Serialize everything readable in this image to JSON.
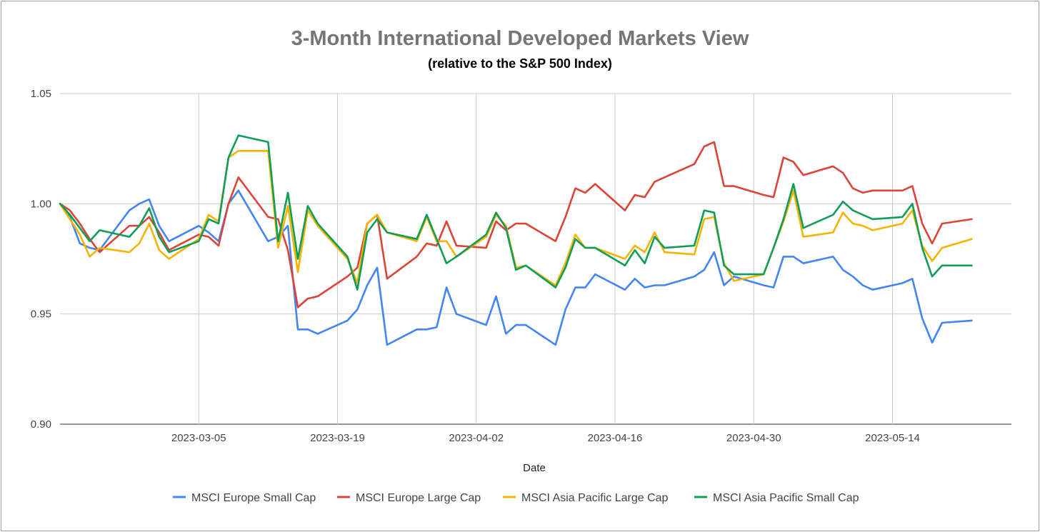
{
  "chart_data": {
    "type": "line",
    "title": "3-Month International Developed Markets View",
    "subtitle": "(relative to the S&P 500 Index)",
    "xlabel": "Date",
    "ylabel": "",
    "ylim": [
      0.9,
      1.05
    ],
    "y_ticks": [
      "0.90",
      "0.95",
      "1.00",
      "1.05"
    ],
    "x_ticks": [
      "2023-03-05",
      "2023-03-19",
      "2023-04-02",
      "2023-04-16",
      "2023-04-30",
      "2023-05-14"
    ],
    "x_tick_index": [
      14,
      28,
      42,
      56,
      70,
      84
    ],
    "x_range": [
      0,
      96
    ],
    "grid": true,
    "legend_position": "bottom",
    "series": [
      {
        "name": "MSCI Europe Small Cap",
        "color": "#4285F4",
        "points": [
          [
            0,
            1.0
          ],
          [
            1,
            0.994
          ],
          [
            2,
            0.982
          ],
          [
            3,
            0.98
          ],
          [
            4,
            0.979
          ],
          [
            7,
            0.997
          ],
          [
            8,
            1.0
          ],
          [
            9,
            1.002
          ],
          [
            10,
            0.99
          ],
          [
            11,
            0.983
          ],
          [
            14,
            0.99
          ],
          [
            15,
            0.987
          ],
          [
            16,
            0.983
          ],
          [
            17,
            1.0
          ],
          [
            18,
            1.006
          ],
          [
            21,
            0.983
          ],
          [
            22,
            0.985
          ],
          [
            23,
            0.99
          ],
          [
            24,
            0.943
          ],
          [
            25,
            0.943
          ],
          [
            26,
            0.941
          ],
          [
            29,
            0.947
          ],
          [
            30,
            0.952
          ],
          [
            31,
            0.963
          ],
          [
            32,
            0.971
          ],
          [
            33,
            0.936
          ],
          [
            36,
            0.943
          ],
          [
            37,
            0.943
          ],
          [
            38,
            0.944
          ],
          [
            39,
            0.962
          ],
          [
            40,
            0.95
          ],
          [
            43,
            0.945
          ],
          [
            44,
            0.958
          ],
          [
            45,
            0.941
          ],
          [
            46,
            0.945
          ],
          [
            47,
            0.945
          ],
          [
            50,
            0.936
          ],
          [
            51,
            0.952
          ],
          [
            52,
            0.962
          ],
          [
            53,
            0.962
          ],
          [
            54,
            0.968
          ],
          [
            57,
            0.961
          ],
          [
            58,
            0.966
          ],
          [
            59,
            0.962
          ],
          [
            60,
            0.963
          ],
          [
            61,
            0.963
          ],
          [
            64,
            0.967
          ],
          [
            65,
            0.97
          ],
          [
            66,
            0.978
          ],
          [
            67,
            0.963
          ],
          [
            68,
            0.967
          ],
          [
            71,
            0.963
          ],
          [
            72,
            0.962
          ],
          [
            73,
            0.976
          ],
          [
            74,
            0.976
          ],
          [
            75,
            0.973
          ],
          [
            78,
            0.976
          ],
          [
            79,
            0.97
          ],
          [
            80,
            0.967
          ],
          [
            81,
            0.963
          ],
          [
            82,
            0.961
          ],
          [
            85,
            0.964
          ],
          [
            86,
            0.966
          ],
          [
            87,
            0.948
          ],
          [
            88,
            0.937
          ],
          [
            89,
            0.946
          ],
          [
            92,
            0.947
          ]
        ]
      },
      {
        "name": "MSCI Europe Large Cap",
        "color": "#DB4437",
        "points": [
          [
            0,
            1.0
          ],
          [
            1,
            0.997
          ],
          [
            2,
            0.991
          ],
          [
            3,
            0.984
          ],
          [
            4,
            0.978
          ],
          [
            7,
            0.99
          ],
          [
            8,
            0.99
          ],
          [
            9,
            0.994
          ],
          [
            10,
            0.987
          ],
          [
            11,
            0.979
          ],
          [
            14,
            0.986
          ],
          [
            15,
            0.985
          ],
          [
            16,
            0.981
          ],
          [
            17,
            1.0
          ],
          [
            18,
            1.012
          ],
          [
            21,
            0.994
          ],
          [
            22,
            0.993
          ],
          [
            23,
            0.979
          ],
          [
            24,
            0.953
          ],
          [
            25,
            0.957
          ],
          [
            26,
            0.958
          ],
          [
            29,
            0.967
          ],
          [
            30,
            0.971
          ],
          [
            31,
            0.991
          ],
          [
            32,
            0.995
          ],
          [
            33,
            0.966
          ],
          [
            36,
            0.976
          ],
          [
            37,
            0.982
          ],
          [
            38,
            0.981
          ],
          [
            39,
            0.992
          ],
          [
            40,
            0.981
          ],
          [
            43,
            0.98
          ],
          [
            44,
            0.992
          ],
          [
            45,
            0.988
          ],
          [
            46,
            0.991
          ],
          [
            47,
            0.991
          ],
          [
            50,
            0.983
          ],
          [
            51,
            0.994
          ],
          [
            52,
            1.007
          ],
          [
            53,
            1.005
          ],
          [
            54,
            1.009
          ],
          [
            57,
            0.997
          ],
          [
            58,
            1.004
          ],
          [
            59,
            1.003
          ],
          [
            60,
            1.01
          ],
          [
            61,
            1.012
          ],
          [
            64,
            1.018
          ],
          [
            65,
            1.026
          ],
          [
            66,
            1.028
          ],
          [
            67,
            1.008
          ],
          [
            68,
            1.008
          ],
          [
            71,
            1.004
          ],
          [
            72,
            1.003
          ],
          [
            73,
            1.021
          ],
          [
            74,
            1.019
          ],
          [
            75,
            1.013
          ],
          [
            78,
            1.017
          ],
          [
            79,
            1.014
          ],
          [
            80,
            1.007
          ],
          [
            81,
            1.005
          ],
          [
            82,
            1.006
          ],
          [
            85,
            1.006
          ],
          [
            86,
            1.008
          ],
          [
            87,
            0.991
          ],
          [
            88,
            0.982
          ],
          [
            89,
            0.991
          ],
          [
            92,
            0.993
          ]
        ]
      },
      {
        "name": "MSCI Asia Pacific Large Cap",
        "color": "#F4B400",
        "points": [
          [
            0,
            1.0
          ],
          [
            1,
            0.993
          ],
          [
            2,
            0.986
          ],
          [
            3,
            0.976
          ],
          [
            4,
            0.98
          ],
          [
            7,
            0.978
          ],
          [
            8,
            0.982
          ],
          [
            9,
            0.991
          ],
          [
            10,
            0.979
          ],
          [
            11,
            0.975
          ],
          [
            14,
            0.984
          ],
          [
            15,
            0.995
          ],
          [
            16,
            0.992
          ],
          [
            17,
            1.021
          ],
          [
            18,
            1.024
          ],
          [
            21,
            1.024
          ],
          [
            22,
            0.98
          ],
          [
            23,
            0.999
          ],
          [
            24,
            0.969
          ],
          [
            25,
            0.997
          ],
          [
            26,
            0.99
          ],
          [
            29,
            0.975
          ],
          [
            30,
            0.964
          ],
          [
            31,
            0.991
          ],
          [
            32,
            0.995
          ],
          [
            33,
            0.987
          ],
          [
            36,
            0.983
          ],
          [
            37,
            0.994
          ],
          [
            38,
            0.983
          ],
          [
            39,
            0.983
          ],
          [
            40,
            0.976
          ],
          [
            43,
            0.985
          ],
          [
            44,
            0.995
          ],
          [
            45,
            0.99
          ],
          [
            46,
            0.971
          ],
          [
            47,
            0.972
          ],
          [
            50,
            0.963
          ],
          [
            51,
            0.973
          ],
          [
            52,
            0.986
          ],
          [
            53,
            0.98
          ],
          [
            54,
            0.98
          ],
          [
            57,
            0.975
          ],
          [
            58,
            0.981
          ],
          [
            59,
            0.978
          ],
          [
            60,
            0.987
          ],
          [
            61,
            0.978
          ],
          [
            64,
            0.977
          ],
          [
            65,
            0.993
          ],
          [
            66,
            0.994
          ],
          [
            67,
            0.973
          ],
          [
            68,
            0.965
          ],
          [
            71,
            0.968
          ],
          [
            72,
            0.98
          ],
          [
            73,
            0.992
          ],
          [
            74,
            1.006
          ],
          [
            75,
            0.985
          ],
          [
            78,
            0.987
          ],
          [
            79,
            0.996
          ],
          [
            80,
            0.991
          ],
          [
            81,
            0.99
          ],
          [
            82,
            0.988
          ],
          [
            85,
            0.991
          ],
          [
            86,
            0.997
          ],
          [
            87,
            0.981
          ],
          [
            88,
            0.974
          ],
          [
            89,
            0.98
          ],
          [
            92,
            0.984
          ]
        ]
      },
      {
        "name": "MSCI Asia Pacific Small Cap",
        "color": "#0F9D58",
        "points": [
          [
            0,
            1.0
          ],
          [
            1,
            0.995
          ],
          [
            2,
            0.989
          ],
          [
            3,
            0.983
          ],
          [
            4,
            0.988
          ],
          [
            7,
            0.985
          ],
          [
            8,
            0.99
          ],
          [
            9,
            0.998
          ],
          [
            10,
            0.985
          ],
          [
            11,
            0.978
          ],
          [
            14,
            0.983
          ],
          [
            15,
            0.993
          ],
          [
            16,
            0.991
          ],
          [
            17,
            1.021
          ],
          [
            18,
            1.031
          ],
          [
            21,
            1.028
          ],
          [
            22,
            0.983
          ],
          [
            23,
            1.005
          ],
          [
            24,
            0.975
          ],
          [
            25,
            0.999
          ],
          [
            26,
            0.991
          ],
          [
            29,
            0.976
          ],
          [
            30,
            0.961
          ],
          [
            31,
            0.987
          ],
          [
            32,
            0.993
          ],
          [
            33,
            0.987
          ],
          [
            36,
            0.984
          ],
          [
            37,
            0.995
          ],
          [
            38,
            0.984
          ],
          [
            39,
            0.973
          ],
          [
            40,
            0.976
          ],
          [
            43,
            0.986
          ],
          [
            44,
            0.996
          ],
          [
            45,
            0.989
          ],
          [
            46,
            0.97
          ],
          [
            47,
            0.972
          ],
          [
            50,
            0.962
          ],
          [
            51,
            0.971
          ],
          [
            52,
            0.984
          ],
          [
            53,
            0.98
          ],
          [
            54,
            0.98
          ],
          [
            57,
            0.972
          ],
          [
            58,
            0.979
          ],
          [
            59,
            0.973
          ],
          [
            60,
            0.985
          ],
          [
            61,
            0.98
          ],
          [
            64,
            0.981
          ],
          [
            65,
            0.997
          ],
          [
            66,
            0.996
          ],
          [
            67,
            0.972
          ],
          [
            68,
            0.968
          ],
          [
            71,
            0.968
          ],
          [
            72,
            0.98
          ],
          [
            73,
            0.993
          ],
          [
            74,
            1.009
          ],
          [
            75,
            0.989
          ],
          [
            78,
            0.995
          ],
          [
            79,
            1.001
          ],
          [
            80,
            0.997
          ],
          [
            81,
            0.995
          ],
          [
            82,
            0.993
          ],
          [
            85,
            0.994
          ],
          [
            86,
            1.0
          ],
          [
            87,
            0.98
          ],
          [
            88,
            0.967
          ],
          [
            89,
            0.972
          ],
          [
            92,
            0.972
          ]
        ]
      }
    ]
  }
}
